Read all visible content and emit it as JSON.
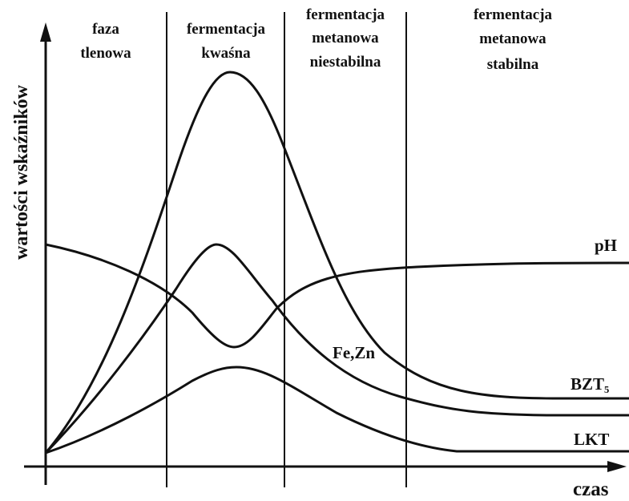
{
  "axes": {
    "y_label": "wartości wskaźników",
    "x_label": "czas"
  },
  "phases": [
    {
      "lines": [
        "faza",
        "tlenowa"
      ]
    },
    {
      "lines": [
        "fermentacja",
        "kwaśna"
      ]
    },
    {
      "lines": [
        "fermentacja",
        "metanowa",
        "niestabilna"
      ]
    },
    {
      "lines": [
        "fermentacja",
        "metanowa",
        "stabilna"
      ]
    }
  ],
  "curves": [
    {
      "label": "pH"
    },
    {
      "label": "Fe,Zn"
    },
    {
      "label": "BZT₅"
    },
    {
      "label": "LKT"
    }
  ]
}
